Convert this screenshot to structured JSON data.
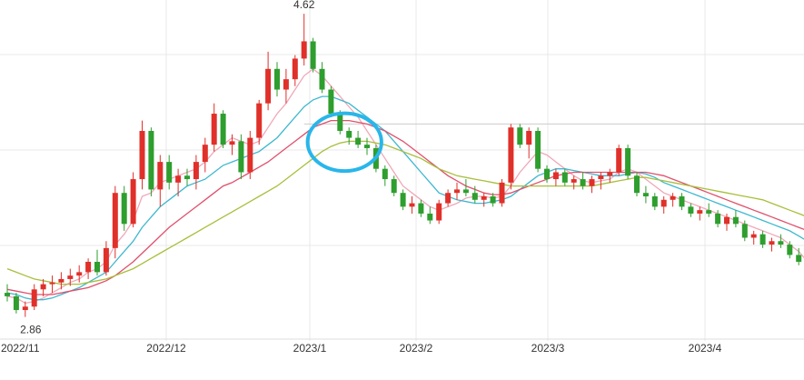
{
  "chart_data": {
    "type": "candlestick",
    "title": "",
    "x_labels": [
      "2022/11",
      "2022/12",
      "2023/1",
      "2023/2",
      "2023/3",
      "2023/4"
    ],
    "price_range": [
      2.8,
      4.7
    ],
    "annotations": {
      "high_label": "4.62",
      "low_label": "2.86",
      "reference_level": 3.98
    },
    "candles": [
      [
        3.0,
        3.05,
        2.95,
        2.98
      ],
      [
        2.98,
        3.0,
        2.88,
        2.9
      ],
      [
        2.9,
        2.95,
        2.86,
        2.92
      ],
      [
        2.92,
        3.05,
        2.9,
        3.02
      ],
      [
        3.02,
        3.08,
        2.98,
        3.05
      ],
      [
        3.05,
        3.1,
        3.0,
        3.06
      ],
      [
        3.06,
        3.12,
        3.02,
        3.08
      ],
      [
        3.08,
        3.14,
        3.04,
        3.1
      ],
      [
        3.1,
        3.16,
        3.06,
        3.12
      ],
      [
        3.12,
        3.2,
        3.08,
        3.18
      ],
      [
        3.18,
        3.25,
        3.1,
        3.12
      ],
      [
        3.12,
        3.3,
        3.1,
        3.26
      ],
      [
        3.26,
        3.62,
        3.2,
        3.58
      ],
      [
        3.58,
        3.62,
        3.36,
        3.4
      ],
      [
        3.4,
        3.7,
        3.38,
        3.66
      ],
      [
        3.66,
        4.0,
        3.6,
        3.94
      ],
      [
        3.94,
        3.96,
        3.56,
        3.6
      ],
      [
        3.6,
        3.8,
        3.5,
        3.76
      ],
      [
        3.76,
        3.8,
        3.6,
        3.64
      ],
      [
        3.64,
        3.72,
        3.56,
        3.68
      ],
      [
        3.68,
        3.72,
        3.62,
        3.66
      ],
      [
        3.66,
        3.8,
        3.6,
        3.76
      ],
      [
        3.76,
        3.9,
        3.7,
        3.86
      ],
      [
        3.86,
        4.1,
        3.82,
        4.04
      ],
      [
        4.04,
        4.06,
        3.84,
        3.86
      ],
      [
        3.86,
        3.92,
        3.8,
        3.88
      ],
      [
        3.88,
        3.92,
        3.66,
        3.7
      ],
      [
        3.7,
        3.94,
        3.66,
        3.9
      ],
      [
        3.9,
        4.12,
        3.86,
        4.1
      ],
      [
        4.1,
        4.4,
        4.06,
        4.3
      ],
      [
        4.3,
        4.34,
        4.14,
        4.18
      ],
      [
        4.18,
        4.3,
        4.1,
        4.24
      ],
      [
        4.24,
        4.38,
        4.2,
        4.36
      ],
      [
        4.36,
        4.62,
        4.32,
        4.46
      ],
      [
        4.46,
        4.48,
        4.28,
        4.3
      ],
      [
        4.3,
        4.34,
        4.16,
        4.18
      ],
      [
        4.18,
        4.2,
        4.02,
        4.04
      ],
      [
        4.04,
        4.06,
        3.92,
        3.94
      ],
      [
        3.94,
        3.96,
        3.86,
        3.9
      ],
      [
        3.9,
        3.94,
        3.84,
        3.86
      ],
      [
        3.86,
        3.9,
        3.8,
        3.84
      ],
      [
        3.84,
        3.86,
        3.7,
        3.72
      ],
      [
        3.72,
        3.74,
        3.62,
        3.66
      ],
      [
        3.66,
        3.68,
        3.56,
        3.58
      ],
      [
        3.58,
        3.6,
        3.48,
        3.5
      ],
      [
        3.5,
        3.56,
        3.46,
        3.52
      ],
      [
        3.52,
        3.54,
        3.44,
        3.46
      ],
      [
        3.46,
        3.5,
        3.4,
        3.42
      ],
      [
        3.42,
        3.54,
        3.4,
        3.52
      ],
      [
        3.52,
        3.6,
        3.5,
        3.58
      ],
      [
        3.58,
        3.64,
        3.54,
        3.6
      ],
      [
        3.6,
        3.66,
        3.56,
        3.58
      ],
      [
        3.58,
        3.62,
        3.52,
        3.54
      ],
      [
        3.54,
        3.58,
        3.5,
        3.56
      ],
      [
        3.56,
        3.58,
        3.5,
        3.52
      ],
      [
        3.52,
        3.66,
        3.5,
        3.64
      ],
      [
        3.64,
        3.98,
        3.6,
        3.96
      ],
      [
        3.96,
        3.98,
        3.84,
        3.86
      ],
      [
        3.86,
        3.96,
        3.78,
        3.94
      ],
      [
        3.94,
        3.96,
        3.7,
        3.72
      ],
      [
        3.72,
        3.74,
        3.64,
        3.66
      ],
      [
        3.66,
        3.72,
        3.62,
        3.7
      ],
      [
        3.7,
        3.72,
        3.62,
        3.64
      ],
      [
        3.64,
        3.68,
        3.6,
        3.66
      ],
      [
        3.66,
        3.7,
        3.6,
        3.62
      ],
      [
        3.62,
        3.68,
        3.58,
        3.66
      ],
      [
        3.66,
        3.7,
        3.6,
        3.68
      ],
      [
        3.68,
        3.72,
        3.64,
        3.7
      ],
      [
        3.7,
        3.86,
        3.68,
        3.84
      ],
      [
        3.84,
        3.86,
        3.66,
        3.68
      ],
      [
        3.68,
        3.7,
        3.56,
        3.58
      ],
      [
        3.58,
        3.62,
        3.52,
        3.56
      ],
      [
        3.56,
        3.58,
        3.48,
        3.5
      ],
      [
        3.5,
        3.56,
        3.46,
        3.54
      ],
      [
        3.54,
        3.58,
        3.5,
        3.56
      ],
      [
        3.56,
        3.58,
        3.48,
        3.5
      ],
      [
        3.5,
        3.52,
        3.44,
        3.46
      ],
      [
        3.46,
        3.5,
        3.42,
        3.48
      ],
      [
        3.48,
        3.52,
        3.44,
        3.46
      ],
      [
        3.46,
        3.48,
        3.38,
        3.4
      ],
      [
        3.4,
        3.46,
        3.36,
        3.44
      ],
      [
        3.44,
        3.48,
        3.38,
        3.4
      ],
      [
        3.4,
        3.42,
        3.3,
        3.32
      ],
      [
        3.32,
        3.36,
        3.28,
        3.34
      ],
      [
        3.34,
        3.36,
        3.26,
        3.28
      ],
      [
        3.28,
        3.32,
        3.24,
        3.3
      ],
      [
        3.3,
        3.34,
        3.26,
        3.28
      ],
      [
        3.28,
        3.3,
        3.2,
        3.22
      ],
      [
        3.22,
        3.26,
        3.16,
        3.18
      ],
      [
        3.18,
        3.2,
        3.06,
        3.08
      ]
    ],
    "moving_averages": [
      {
        "color": "#f0a8b8",
        "values": [
          2.98,
          2.97,
          2.94,
          2.95,
          2.97,
          3.0,
          3.03,
          3.06,
          3.08,
          3.12,
          3.14,
          3.18,
          3.28,
          3.34,
          3.42,
          3.56,
          3.58,
          3.64,
          3.66,
          3.68,
          3.7,
          3.72,
          3.76,
          3.82,
          3.86,
          3.9,
          3.88,
          3.86,
          3.88,
          3.96,
          4.04,
          4.1,
          4.18,
          4.26,
          4.3,
          4.26,
          4.2,
          4.14,
          4.08,
          4.02,
          3.94,
          3.86,
          3.78,
          3.7,
          3.62,
          3.58,
          3.54,
          3.5,
          3.48,
          3.5,
          3.52,
          3.55,
          3.56,
          3.56,
          3.55,
          3.56,
          3.62,
          3.7,
          3.76,
          3.82,
          3.8,
          3.76,
          3.72,
          3.68,
          3.65,
          3.64,
          3.65,
          3.66,
          3.7,
          3.72,
          3.7,
          3.66,
          3.62,
          3.58,
          3.56,
          3.54,
          3.52,
          3.5,
          3.48,
          3.46,
          3.44,
          3.42,
          3.4,
          3.38,
          3.36,
          3.34,
          3.32,
          3.28,
          3.24,
          3.18
        ]
      },
      {
        "color": "#3db8d0",
        "values": [
          3.0,
          2.99,
          2.97,
          2.96,
          2.96,
          2.97,
          2.99,
          3.01,
          3.03,
          3.06,
          3.09,
          3.12,
          3.18,
          3.24,
          3.3,
          3.38,
          3.44,
          3.5,
          3.54,
          3.58,
          3.62,
          3.64,
          3.66,
          3.7,
          3.74,
          3.76,
          3.78,
          3.8,
          3.82,
          3.86,
          3.9,
          3.96,
          4.02,
          4.08,
          4.12,
          4.14,
          4.14,
          4.12,
          4.1,
          4.06,
          4.02,
          3.98,
          3.94,
          3.88,
          3.82,
          3.76,
          3.7,
          3.64,
          3.58,
          3.56,
          3.54,
          3.53,
          3.52,
          3.52,
          3.53,
          3.54,
          3.56,
          3.6,
          3.64,
          3.68,
          3.7,
          3.72,
          3.72,
          3.71,
          3.7,
          3.69,
          3.68,
          3.68,
          3.68,
          3.69,
          3.7,
          3.69,
          3.67,
          3.64,
          3.62,
          3.6,
          3.58,
          3.56,
          3.54,
          3.52,
          3.5,
          3.48,
          3.46,
          3.44,
          3.42,
          3.4,
          3.38,
          3.36,
          3.33,
          3.3
        ]
      },
      {
        "color": "#e0506c",
        "values": [
          3.02,
          3.01,
          3.0,
          2.99,
          2.99,
          2.99,
          3.0,
          3.01,
          3.02,
          3.03,
          3.05,
          3.07,
          3.1,
          3.14,
          3.18,
          3.23,
          3.28,
          3.33,
          3.38,
          3.42,
          3.46,
          3.5,
          3.54,
          3.58,
          3.62,
          3.64,
          3.67,
          3.7,
          3.73,
          3.76,
          3.8,
          3.84,
          3.88,
          3.92,
          3.96,
          3.98,
          4.0,
          4.0,
          4.0,
          3.99,
          3.98,
          3.96,
          3.94,
          3.91,
          3.88,
          3.84,
          3.8,
          3.76,
          3.72,
          3.68,
          3.65,
          3.62,
          3.6,
          3.58,
          3.57,
          3.57,
          3.58,
          3.6,
          3.62,
          3.64,
          3.66,
          3.68,
          3.69,
          3.7,
          3.7,
          3.7,
          3.7,
          3.7,
          3.7,
          3.7,
          3.7,
          3.7,
          3.69,
          3.68,
          3.66,
          3.64,
          3.62,
          3.6,
          3.58,
          3.56,
          3.54,
          3.52,
          3.5,
          3.48,
          3.46,
          3.44,
          3.42,
          3.4,
          3.38,
          3.36
        ]
      },
      {
        "color": "#a8bf3c",
        "values": [
          3.14,
          3.12,
          3.1,
          3.08,
          3.07,
          3.06,
          3.05,
          3.05,
          3.05,
          3.06,
          3.07,
          3.08,
          3.1,
          3.12,
          3.14,
          3.17,
          3.2,
          3.23,
          3.26,
          3.29,
          3.32,
          3.35,
          3.38,
          3.41,
          3.44,
          3.47,
          3.5,
          3.53,
          3.56,
          3.59,
          3.62,
          3.66,
          3.7,
          3.74,
          3.78,
          3.82,
          3.85,
          3.87,
          3.88,
          3.88,
          3.88,
          3.87,
          3.86,
          3.84,
          3.82,
          3.8,
          3.78,
          3.75,
          3.72,
          3.7,
          3.68,
          3.67,
          3.66,
          3.65,
          3.64,
          3.63,
          3.62,
          3.62,
          3.62,
          3.62,
          3.62,
          3.62,
          3.62,
          3.62,
          3.62,
          3.62,
          3.63,
          3.64,
          3.65,
          3.66,
          3.67,
          3.67,
          3.66,
          3.65,
          3.64,
          3.63,
          3.62,
          3.61,
          3.6,
          3.59,
          3.58,
          3.57,
          3.56,
          3.55,
          3.54,
          3.52,
          3.5,
          3.48,
          3.46,
          3.44
        ]
      }
    ],
    "highlight": {
      "shape": "ellipse",
      "color": "#29b6ea",
      "from_index": 34,
      "to_index": 41,
      "price_range": [
        3.76,
        4.0
      ]
    },
    "colors": {
      "up": "#e0302a",
      "down": "#2e9e2e",
      "doji": "#222222",
      "grid": "#e8e8e8"
    }
  }
}
